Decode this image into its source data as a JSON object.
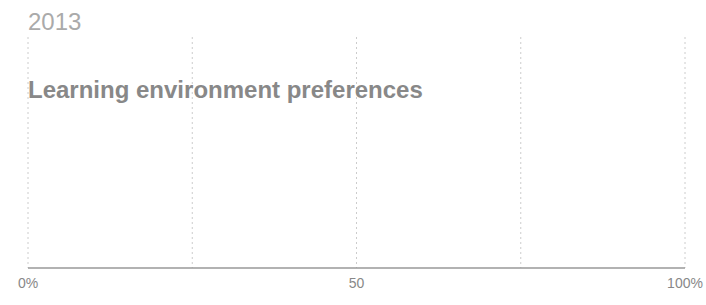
{
  "chart_data": {
    "type": "bar",
    "orientation": "horizontal",
    "subtitle": "2013",
    "title": "Learning environment preferences",
    "xlim": [
      0,
      100
    ],
    "xticks": [
      {
        "value": 0,
        "label": "0%"
      },
      {
        "value": 25,
        "label": null
      },
      50,
      {
        "value": 75,
        "label": null
      },
      {
        "value": 100,
        "label": "100%"
      }
    ],
    "grid": true
  }
}
